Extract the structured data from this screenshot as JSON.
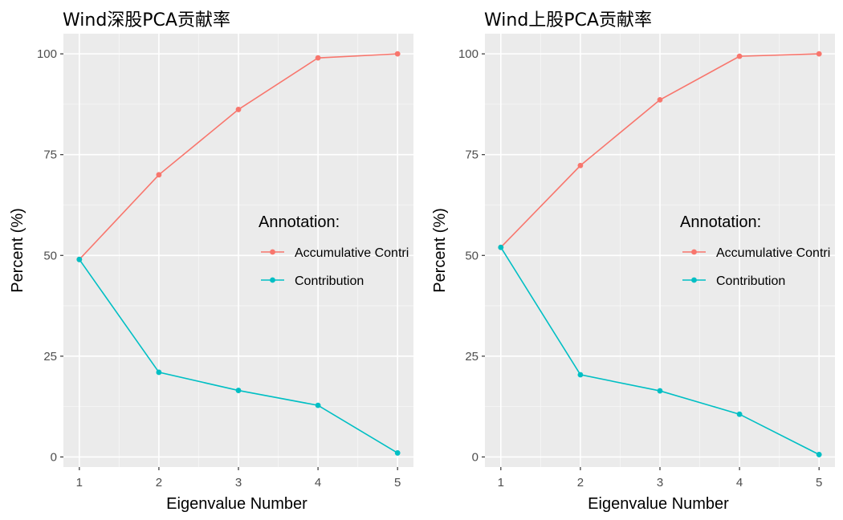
{
  "chart_data": [
    {
      "type": "line",
      "title": "Wind深股PCA贡献率",
      "xlabel": "Eigenvalue Number",
      "ylabel": "Percent (%)",
      "x": [
        1,
        2,
        3,
        4,
        5
      ],
      "x_tick_labels": [
        "1",
        "2",
        "3",
        "4",
        "5"
      ],
      "y_tick_labels": [
        "0",
        "25",
        "50",
        "75",
        "100"
      ],
      "y_ticks": [
        0,
        25,
        50,
        75,
        100
      ],
      "xlim": [
        0.8,
        5.2
      ],
      "ylim": [
        -2.5,
        105
      ],
      "grid": true,
      "legend": {
        "title": "Annotation:",
        "placement": "right-center"
      },
      "series": [
        {
          "name": "Accumulative Contri",
          "color": "#F8766D",
          "values": [
            49,
            70,
            86.2,
            99,
            100
          ]
        },
        {
          "name": "Contribution",
          "color": "#00BFC4",
          "values": [
            49,
            21,
            16.5,
            12.8,
            1
          ]
        }
      ]
    },
    {
      "type": "line",
      "title": "Wind上股PCA贡献率",
      "xlabel": "Eigenvalue Number",
      "ylabel": "Percent (%)",
      "x": [
        1,
        2,
        3,
        4,
        5
      ],
      "x_tick_labels": [
        "1",
        "2",
        "3",
        "4",
        "5"
      ],
      "y_tick_labels": [
        "0",
        "25",
        "50",
        "75",
        "100"
      ],
      "y_ticks": [
        0,
        25,
        50,
        75,
        100
      ],
      "xlim": [
        0.8,
        5.2
      ],
      "ylim": [
        -2.5,
        105
      ],
      "grid": true,
      "legend": {
        "title": "Annotation:",
        "placement": "right-center"
      },
      "series": [
        {
          "name": "Accumulative Contri",
          "color": "#F8766D",
          "values": [
            52,
            72.3,
            88.6,
            99.4,
            100
          ]
        },
        {
          "name": "Contribution",
          "color": "#00BFC4",
          "values": [
            52,
            20.4,
            16.4,
            10.6,
            0.6
          ]
        }
      ]
    }
  ]
}
